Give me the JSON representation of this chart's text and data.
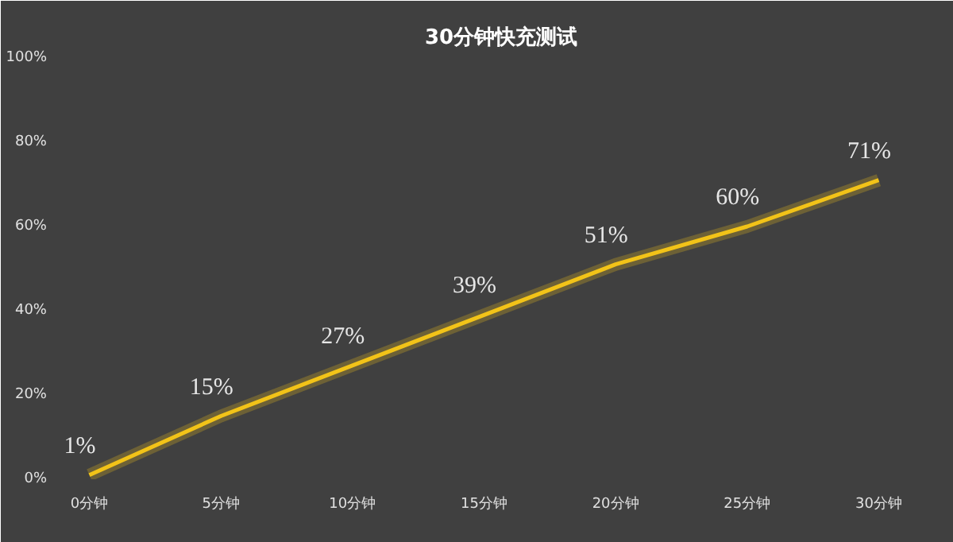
{
  "chart_data": {
    "type": "line",
    "title": "30分钟快充测试",
    "categories": [
      "0分钟",
      "5分钟",
      "10分钟",
      "15分钟",
      "20分钟",
      "25分钟",
      "30分钟"
    ],
    "series": [
      {
        "color": "#f2c318",
        "values": [
          1,
          15,
          27,
          39,
          51,
          60,
          71
        ],
        "value_labels": [
          "1%",
          "15%",
          "27%",
          "39%",
          "51%",
          "60%",
          "71%"
        ]
      }
    ],
    "ylim": [
      0,
      100
    ],
    "yticks": [
      {
        "value": 0,
        "label": "0%"
      },
      {
        "value": 20,
        "label": "20%"
      },
      {
        "value": 40,
        "label": "40%"
      },
      {
        "value": 60,
        "label": "60%"
      },
      {
        "value": 80,
        "label": "80%"
      },
      {
        "value": 100,
        "label": "100%"
      }
    ],
    "grid": false,
    "marker": "none",
    "line_style": "solid"
  }
}
